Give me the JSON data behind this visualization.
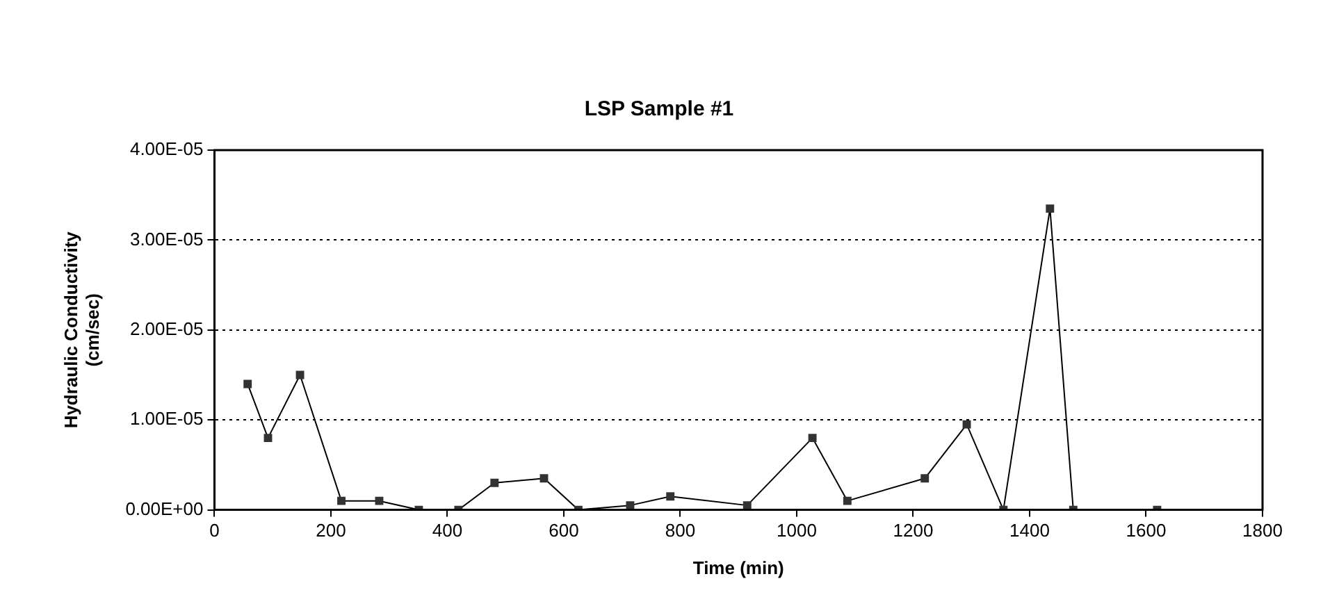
{
  "chart_data": {
    "type": "line",
    "title": "LSP Sample #1",
    "xlabel": "Time (min)",
    "ylabel": "Hydraulic Conductivity\n(cm/sec)",
    "x": [
      57,
      92,
      147,
      218,
      283,
      351,
      419,
      481,
      566,
      625,
      714,
      783,
      915,
      1027,
      1087,
      1220,
      1292,
      1355,
      1435,
      1475,
      1619
    ],
    "series": [
      {
        "color": "#333333",
        "values": [
          1.4e-05,
          8e-06,
          1.5e-05,
          1e-06,
          1e-06,
          0,
          0,
          3e-06,
          3.5e-06,
          0,
          5e-07,
          1.5e-06,
          5e-07,
          8e-06,
          1e-06,
          3.5e-06,
          9.5e-06,
          0,
          3.35e-05,
          0,
          0
        ]
      }
    ],
    "xlim": [
      0,
      1800
    ],
    "xticks": [
      0,
      200,
      400,
      600,
      800,
      1000,
      1200,
      1400,
      1600,
      1800
    ],
    "ylim": [
      0,
      4e-05
    ],
    "yticks": [
      {
        "value": 0,
        "label": "0.00E+00"
      },
      {
        "value": 1e-05,
        "label": "1.00E-05"
      },
      {
        "value": 2e-05,
        "label": "2.00E-05"
      },
      {
        "value": 3e-05,
        "label": "3.00E-05"
      },
      {
        "value": 4e-05,
        "label": "4.00E-05"
      }
    ],
    "grid": "y",
    "legend": false,
    "marker": "square",
    "line_style": "solid"
  }
}
